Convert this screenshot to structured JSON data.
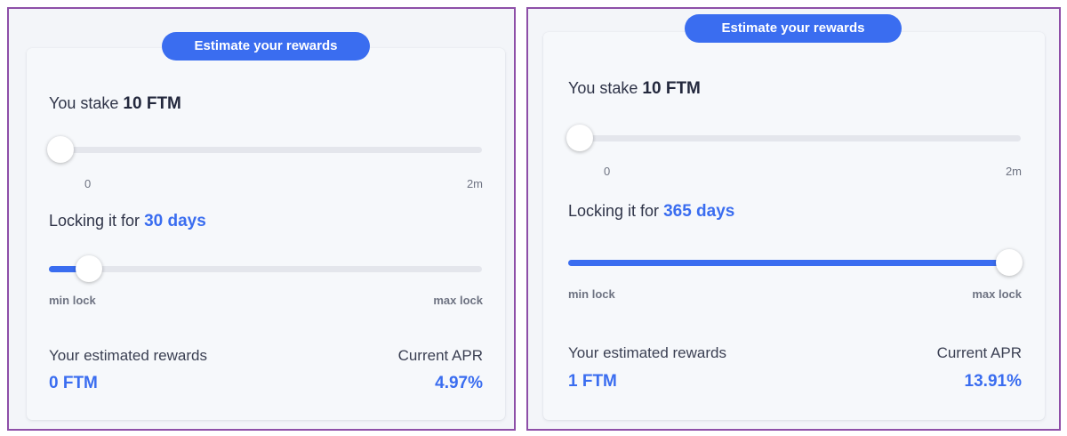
{
  "colors": {
    "accent": "#3a6df0",
    "panel_border": "#8e4fa8",
    "track": "#e4e6ec"
  },
  "panels": [
    {
      "button_label": "Estimate your rewards",
      "stake": {
        "prefix": "You stake",
        "amount": "10 FTM",
        "min_label": "0",
        "max_label": "2m",
        "fraction": 0.0
      },
      "lock": {
        "prefix": "Locking it for",
        "amount": "30 days",
        "min_label": "min lock",
        "max_label": "max lock",
        "fraction": 0.07
      },
      "rewards": {
        "label": "Your estimated rewards",
        "value": "0 FTM"
      },
      "apr": {
        "label": "Current APR",
        "value": "4.97%"
      }
    },
    {
      "button_label": "Estimate your rewards",
      "stake": {
        "prefix": "You stake",
        "amount": "10 FTM",
        "min_label": "0",
        "max_label": "2m",
        "fraction": 0.0
      },
      "lock": {
        "prefix": "Locking it for",
        "amount": "365 days",
        "min_label": "min lock",
        "max_label": "max lock",
        "fraction": 1.0
      },
      "rewards": {
        "label": "Your estimated rewards",
        "value": "1 FTM"
      },
      "apr": {
        "label": "Current APR",
        "value": "13.91%"
      }
    }
  ]
}
